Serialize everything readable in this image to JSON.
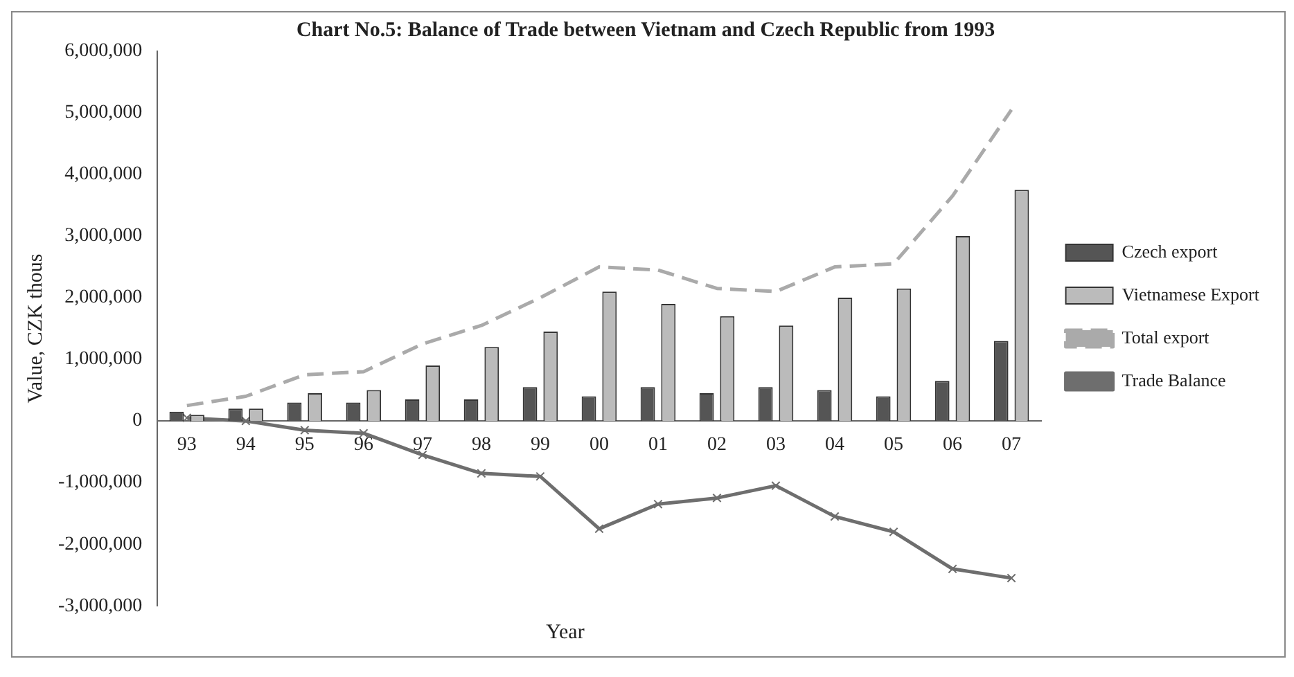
{
  "chart_data": {
    "type": "bar",
    "title": "Chart No.5: Balance of Trade between Vietnam and Czech Republic from 1993",
    "xlabel": "Year",
    "ylabel": "Value, CZK thous",
    "categories": [
      "93",
      "94",
      "95",
      "96",
      "97",
      "98",
      "99",
      "00",
      "01",
      "02",
      "03",
      "04",
      "05",
      "06",
      "07"
    ],
    "series": [
      {
        "name": "Czech export",
        "color": "#555555",
        "values": [
          150000,
          200000,
          300000,
          300000,
          350000,
          350000,
          550000,
          400000,
          550000,
          450000,
          550000,
          500000,
          400000,
          650000,
          1300000
        ]
      },
      {
        "name": "Vietnamese Export",
        "color": "#bbbbbb",
        "values": [
          100000,
          200000,
          450000,
          500000,
          900000,
          1200000,
          1450000,
          2100000,
          1900000,
          1700000,
          1550000,
          2000000,
          2150000,
          3000000,
          3750000
        ]
      },
      {
        "name": "Total export",
        "type": "line",
        "color": "#aaaaaa",
        "line_style": "dashed",
        "marker": "none",
        "values": [
          250000,
          400000,
          750000,
          800000,
          1250000,
          1550000,
          2000000,
          2500000,
          2450000,
          2150000,
          2100000,
          2500000,
          2550000,
          3650000,
          5050000
        ]
      },
      {
        "name": "Trade Balance",
        "type": "line",
        "color": "#6e6e6e",
        "line_style": "solid",
        "marker": "cross",
        "values": [
          50000,
          0,
          -150000,
          -200000,
          -550000,
          -850000,
          -900000,
          -1750000,
          -1350000,
          -1250000,
          -1050000,
          -1550000,
          -1800000,
          -2400000,
          -2550000
        ]
      }
    ],
    "ylim": [
      -3000000,
      6000000
    ],
    "yticks": [
      {
        "value": -3000000,
        "label": "-3,000,000"
      },
      {
        "value": -2000000,
        "label": "-2,000,000"
      },
      {
        "value": -1000000,
        "label": "-1,000,000"
      },
      0,
      {
        "value": 1000000,
        "label": "1,000,000"
      },
      {
        "value": 2000000,
        "label": "2,000,000"
      },
      {
        "value": 3000000,
        "label": "3,000,000"
      },
      {
        "value": 4000000,
        "label": "4,000,000"
      },
      {
        "value": 5000000,
        "label": "5,000,000"
      },
      {
        "value": 6000000,
        "label": "6,000,000"
      }
    ],
    "grid": false,
    "legend": "right"
  }
}
